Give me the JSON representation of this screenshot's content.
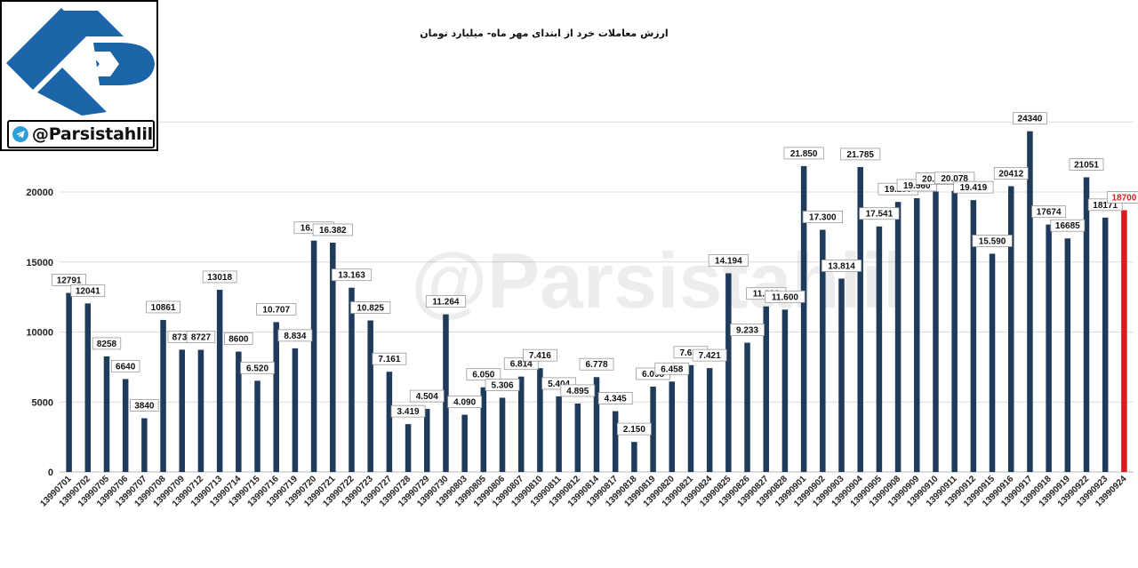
{
  "brand": {
    "handle": "@Parsistahlil",
    "watermark": "@Parsistahlil"
  },
  "colors": {
    "bar": "#1f3b5c",
    "highlight_bar": "#d91b1b",
    "logo": "#1c64a8",
    "grid": "#dcdcdc"
  },
  "chart_data": {
    "type": "bar",
    "title": "ارزش معاملات خرد از ابتدای مهر ماه- میلیارد تومان",
    "xlabel": "",
    "ylabel": "",
    "ylim": [
      0,
      25000
    ],
    "yticks": [
      0,
      5000,
      10000,
      15000,
      20000
    ],
    "grid": true,
    "legend": "none",
    "categories": [
      "13990701",
      "13990702",
      "13990705",
      "13990706",
      "13990707",
      "13990708",
      "13990709",
      "13990712",
      "13990713",
      "13990714",
      "13990715",
      "13990716",
      "13990719",
      "13990720",
      "13990721",
      "13990722",
      "13990723",
      "13990727",
      "13990728",
      "13990729",
      "13990730",
      "13990803",
      "13990805",
      "13990806",
      "13990807",
      "13990810",
      "13990811",
      "13990812",
      "13990814",
      "13990817",
      "13990818",
      "13990819",
      "13990820",
      "13990821",
      "13990824",
      "13990825",
      "13990826",
      "13990827",
      "13990828",
      "13990901",
      "13990902",
      "13990903",
      "13990904",
      "13990905",
      "13990908",
      "13990909",
      "13990910",
      "13990911",
      "13990912",
      "13990915",
      "13990916",
      "13990917",
      "13990918",
      "13990919",
      "13990922",
      "13990923",
      "13990924"
    ],
    "values": [
      12791,
      12041,
      8258,
      6640,
      3840,
      10861,
      8739,
      8727,
      13018,
      8600,
      6520,
      10707,
      8834,
      16527,
      16382,
      13163,
      10825,
      7161,
      3419,
      4504,
      11264,
      4090,
      6050,
      5306,
      6814,
      7416,
      5404,
      4895,
      6778,
      4345,
      2150,
      6098,
      6458,
      7633,
      7421,
      14194,
      9233,
      11828,
      11600,
      21850,
      17300,
      13814,
      21785,
      17541,
      19290,
      19560,
      20036,
      20078,
      19419,
      15590,
      20412,
      24340,
      17674,
      16685,
      21051,
      18171,
      18700
    ],
    "data_labels": [
      "12791",
      "12041",
      "8258",
      "6640",
      "3840",
      "10861",
      "8739",
      "8727",
      "13018",
      "8600",
      "6.520",
      "10.707",
      "8.834",
      "16.527",
      "16.382",
      "13.163",
      "10.825",
      "7.161",
      "3.419",
      "4.504",
      "11.264",
      "4.090",
      "6.050",
      "5.306",
      "6.814",
      "7.416",
      "5.404",
      "4.895",
      "6.778",
      "4.345",
      "2.150",
      "6.098",
      "6.458",
      "7.633",
      "7.421",
      "14.194",
      "9.233",
      "11.828",
      "11.600",
      "21.850",
      "17.300",
      "13.814",
      "21.785",
      "17.541",
      "19.290",
      "19.560",
      "20.036",
      "20.078",
      "19.419",
      "15.590",
      "20412",
      "24340",
      "17674",
      "16685",
      "21051",
      "18171",
      "18700"
    ],
    "highlight_index": 56
  }
}
